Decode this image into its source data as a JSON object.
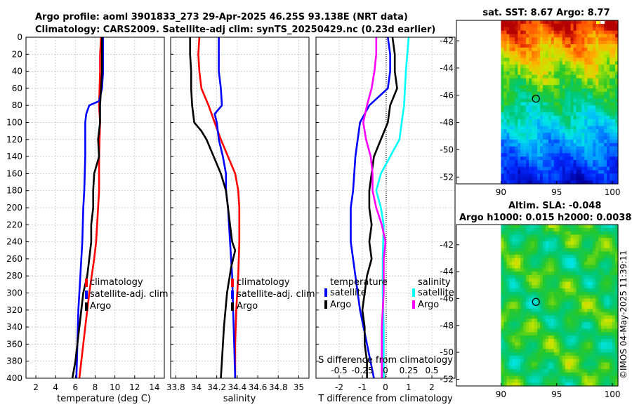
{
  "title_line1": "Argo profile: aoml 3901833_273 29-Apr-2025 46.25S 93.138E (NRT data)",
  "title_line2": "Climatology: CARS2009. Satellite-adj clim: synTS_20250429.nc (0.23d earlier)",
  "timestamp": "©IMOS 04-May-2025 11:39:11",
  "colors": {
    "climatology": "#ff0000",
    "satellite": "#0000ff",
    "argo": "#000000",
    "diff_argo_s": "#ff00ff",
    "diff_sat_s": "#00ffff"
  },
  "chart_data": [
    {
      "id": "temperature",
      "type": "line",
      "xlabel": "temperature (deg C)",
      "ylabel": "",
      "xlim": [
        1,
        15
      ],
      "ylim": [
        400,
        0
      ],
      "xticks": [
        2,
        4,
        6,
        8,
        10,
        12,
        14
      ],
      "yticks": [
        0,
        20,
        40,
        60,
        80,
        100,
        120,
        140,
        160,
        180,
        200,
        220,
        240,
        260,
        280,
        300,
        320,
        340,
        360,
        380,
        400
      ],
      "grid": true,
      "legend_position": "lower-center",
      "legend": [
        "climatology",
        "satellite-adj. clim",
        "Argo"
      ],
      "series": [
        {
          "name": "climatology",
          "color": "#ff0000",
          "points": [
            [
              8.6,
              0
            ],
            [
              8.5,
              20
            ],
            [
              8.5,
              40
            ],
            [
              8.4,
              80
            ],
            [
              8.5,
              100
            ],
            [
              8.4,
              140
            ],
            [
              8.4,
              180
            ],
            [
              8.3,
              200
            ],
            [
              8.1,
              240
            ],
            [
              7.9,
              260
            ],
            [
              7.4,
              300
            ],
            [
              7.0,
              340
            ],
            [
              6.6,
              380
            ],
            [
              6.4,
              400
            ]
          ]
        },
        {
          "name": "satellite-adj. clim",
          "color": "#0000ff",
          "points": [
            [
              8.8,
              0
            ],
            [
              8.8,
              20
            ],
            [
              8.8,
              40
            ],
            [
              8.7,
              60
            ],
            [
              8.4,
              75
            ],
            [
              7.4,
              80
            ],
            [
              7.1,
              90
            ],
            [
              7.0,
              100
            ],
            [
              7.0,
              140
            ],
            [
              6.9,
              180
            ],
            [
              6.8,
              200
            ],
            [
              6.7,
              240
            ],
            [
              6.5,
              280
            ],
            [
              6.3,
              320
            ],
            [
              6.2,
              360
            ],
            [
              6.1,
              400
            ]
          ]
        },
        {
          "name": "Argo",
          "color": "#000000",
          "points": [
            [
              8.7,
              0
            ],
            [
              8.7,
              20
            ],
            [
              8.7,
              40
            ],
            [
              8.6,
              60
            ],
            [
              8.5,
              80
            ],
            [
              8.5,
              100
            ],
            [
              8.3,
              120
            ],
            [
              8.4,
              140
            ],
            [
              7.9,
              160
            ],
            [
              7.8,
              180
            ],
            [
              7.8,
              200
            ],
            [
              7.6,
              220
            ],
            [
              7.6,
              240
            ],
            [
              7.4,
              260
            ],
            [
              7.2,
              280
            ],
            [
              6.8,
              300
            ],
            [
              6.6,
              320
            ],
            [
              6.4,
              340
            ],
            [
              6.2,
              360
            ],
            [
              6.0,
              380
            ],
            [
              5.7,
              400
            ]
          ]
        }
      ]
    },
    {
      "id": "salinity",
      "type": "line",
      "xlabel": "salinity",
      "ylabel": "",
      "xlim": [
        33.75,
        35.1
      ],
      "ylim": [
        400,
        0
      ],
      "xticks": [
        33.8,
        34,
        34.2,
        34.4,
        34.6,
        34.8,
        35
      ],
      "xticklabels": [
        "33.8",
        "34",
        "34.2",
        "34.4",
        "34.6",
        "34.8",
        "35"
      ],
      "yticks": [
        0,
        20,
        40,
        60,
        80,
        100,
        120,
        140,
        160,
        180,
        200,
        220,
        240,
        260,
        280,
        300,
        320,
        340,
        360,
        380,
        400
      ],
      "grid": true,
      "legend_position": "lower-center",
      "legend": [
        "climatology",
        "satellite-adj. clim",
        "Argo"
      ],
      "series": [
        {
          "name": "climatology",
          "color": "#ff0000",
          "points": [
            [
              34.03,
              0
            ],
            [
              34.02,
              20
            ],
            [
              34.03,
              40
            ],
            [
              34.05,
              60
            ],
            [
              34.12,
              80
            ],
            [
              34.18,
              100
            ],
            [
              34.24,
              120
            ],
            [
              34.31,
              140
            ],
            [
              34.38,
              160
            ],
            [
              34.41,
              180
            ],
            [
              34.42,
              200
            ],
            [
              34.42,
              240
            ],
            [
              34.41,
              280
            ],
            [
              34.39,
              320
            ],
            [
              34.38,
              360
            ],
            [
              34.38,
              400
            ]
          ]
        },
        {
          "name": "satellite-adj. clim",
          "color": "#0000ff",
          "points": [
            [
              34.22,
              0
            ],
            [
              34.22,
              20
            ],
            [
              34.22,
              40
            ],
            [
              34.24,
              60
            ],
            [
              34.25,
              80
            ],
            [
              34.18,
              90
            ],
            [
              34.2,
              100
            ],
            [
              34.22,
              120
            ],
            [
              34.26,
              140
            ],
            [
              34.29,
              160
            ],
            [
              34.29,
              180
            ],
            [
              34.31,
              200
            ],
            [
              34.33,
              240
            ],
            [
              34.35,
              280
            ],
            [
              34.36,
              320
            ],
            [
              34.37,
              360
            ],
            [
              34.38,
              400
            ]
          ]
        },
        {
          "name": "Argo",
          "color": "#000000",
          "points": [
            [
              33.94,
              0
            ],
            [
              33.94,
              20
            ],
            [
              33.95,
              40
            ],
            [
              33.95,
              60
            ],
            [
              33.96,
              80
            ],
            [
              33.98,
              100
            ],
            [
              34.05,
              110
            ],
            [
              34.1,
              120
            ],
            [
              34.17,
              140
            ],
            [
              34.24,
              160
            ],
            [
              34.29,
              180
            ],
            [
              34.31,
              200
            ],
            [
              34.33,
              220
            ],
            [
              34.35,
              240
            ],
            [
              34.38,
              250
            ],
            [
              34.34,
              270
            ],
            [
              34.3,
              300
            ],
            [
              34.27,
              340
            ],
            [
              34.25,
              380
            ],
            [
              34.24,
              400
            ]
          ]
        }
      ]
    },
    {
      "id": "difference",
      "type": "line",
      "xlabel": "T difference from climatology",
      "xlabel_top": "S difference from climatology",
      "xlim": [
        -3,
        3
      ],
      "ylim": [
        400,
        0
      ],
      "xticks": [
        -2,
        -1,
        0,
        1,
        2
      ],
      "top_ticks": [
        -0.5,
        -0.25,
        0,
        0.25,
        0.5
      ],
      "top_ticklabels": [
        "-0.5",
        "-0.25",
        "0",
        "0.25",
        "0.5"
      ],
      "yticks": [
        0,
        20,
        40,
        60,
        80,
        100,
        120,
        140,
        160,
        180,
        200,
        220,
        240,
        260,
        280,
        300,
        320,
        340,
        360,
        380,
        400
      ],
      "grid": true,
      "legend_temperature": {
        "heading": "temperature",
        "items": [
          "satellite",
          "Argo"
        ]
      },
      "legend_salinity": {
        "heading": "salinity",
        "items": [
          "satellite",
          "Argo"
        ]
      },
      "series": [
        {
          "name": "T satellite",
          "color": "#0000ff",
          "points": [
            [
              0.1,
              0
            ],
            [
              0.2,
              20
            ],
            [
              0.2,
              40
            ],
            [
              0.1,
              60
            ],
            [
              -0.7,
              80
            ],
            [
              -1.1,
              100
            ],
            [
              -1.3,
              140
            ],
            [
              -1.4,
              180
            ],
            [
              -1.5,
              200
            ],
            [
              -1.5,
              240
            ],
            [
              -1.3,
              280
            ],
            [
              -1.1,
              320
            ],
            [
              -0.8,
              360
            ],
            [
              -0.5,
              400
            ]
          ]
        },
        {
          "name": "T Argo",
          "color": "#000000",
          "points": [
            [
              0.3,
              0
            ],
            [
              0.4,
              20
            ],
            [
              0.4,
              40
            ],
            [
              0.5,
              60
            ],
            [
              0.2,
              80
            ],
            [
              0.1,
              100
            ],
            [
              -0.2,
              120
            ],
            [
              -0.5,
              140
            ],
            [
              -0.6,
              160
            ],
            [
              -0.7,
              180
            ],
            [
              -0.7,
              200
            ],
            [
              -0.6,
              220
            ],
            [
              -0.7,
              240
            ],
            [
              -0.6,
              260
            ],
            [
              -0.8,
              280
            ],
            [
              -0.9,
              300
            ],
            [
              -1.0,
              320
            ],
            [
              -0.9,
              340
            ],
            [
              -0.9,
              360
            ],
            [
              -0.8,
              380
            ],
            [
              -0.8,
              400
            ]
          ]
        },
        {
          "name": "S satellite",
          "color": "#00ffff",
          "points": [
            [
              0.25,
              0
            ],
            [
              0.22,
              40
            ],
            [
              0.2,
              80
            ],
            [
              0.15,
              120
            ],
            [
              0.05,
              140
            ],
            [
              -0.05,
              160
            ],
            [
              -0.1,
              180
            ],
            [
              -0.05,
              200
            ],
            [
              -0.02,
              220
            ],
            [
              -0.03,
              260
            ],
            [
              -0.03,
              300
            ],
            [
              -0.02,
              340
            ],
            [
              -0.02,
              400
            ]
          ]
        },
        {
          "name": "S Argo",
          "color": "#ff00ff",
          "points": [
            [
              -0.1,
              0
            ],
            [
              -0.1,
              20
            ],
            [
              -0.12,
              40
            ],
            [
              -0.15,
              60
            ],
            [
              -0.2,
              80
            ],
            [
              -0.24,
              100
            ],
            [
              -0.21,
              120
            ],
            [
              -0.16,
              140
            ],
            [
              -0.14,
              160
            ],
            [
              -0.14,
              180
            ],
            [
              -0.1,
              200
            ],
            [
              -0.04,
              220
            ],
            [
              0.0,
              240
            ],
            [
              -0.02,
              260
            ],
            [
              -0.02,
              300
            ],
            [
              -0.04,
              340
            ],
            [
              -0.04,
              380
            ],
            [
              -0.04,
              400
            ]
          ]
        }
      ]
    },
    {
      "id": "sst_map",
      "type": "heatmap",
      "title": "sat. SST: 8.67  Argo: 8.77",
      "xticks": [
        90,
        95,
        100
      ],
      "yticks": [
        -42,
        -44,
        -46,
        -48,
        -50,
        -52
      ],
      "xlim": [
        86,
        100.5
      ],
      "ylim": [
        -52.5,
        -40.5
      ],
      "data_xlim": [
        90,
        100.5
      ],
      "profile_location": [
        93.138,
        -46.25
      ]
    },
    {
      "id": "sla_map",
      "type": "heatmap",
      "title": "Altim. SLA: -0.048",
      "subtitle": "Argo h1000: 0.015  h2000: 0.0038",
      "xticks": [
        90,
        95,
        100
      ],
      "yticks": [
        -42,
        -44,
        -46,
        -48,
        -50,
        -52
      ],
      "xlim": [
        86,
        100.5
      ],
      "ylim": [
        -52.5,
        -40.5
      ],
      "data_xlim": [
        90,
        100.5
      ],
      "profile_location": [
        93.138,
        -46.25
      ]
    }
  ]
}
